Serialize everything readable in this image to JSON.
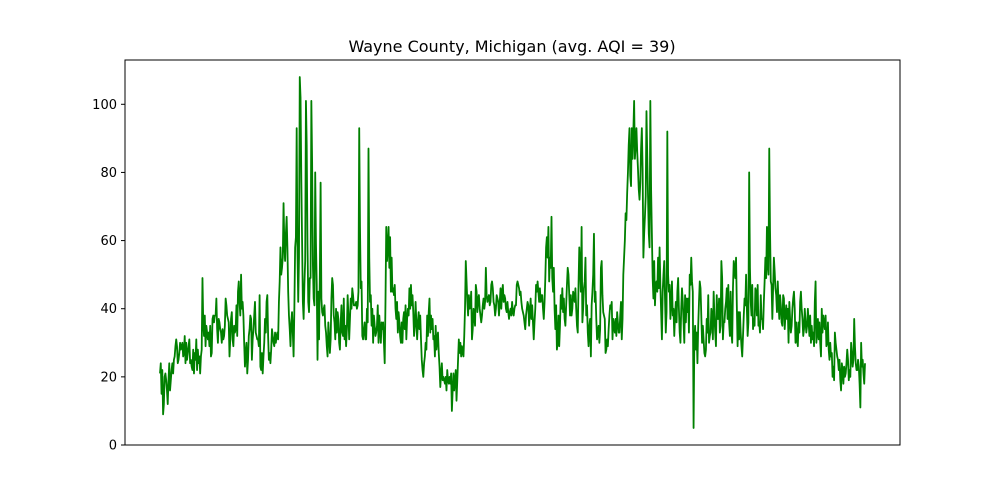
{
  "chart_data": {
    "type": "line",
    "title": "Wayne County, Michigan (avg. AQI = 39)",
    "xlabel": "",
    "ylabel": "",
    "x_tick_labels_shown": false,
    "ylim": [
      0,
      113
    ],
    "yticks": [
      0,
      20,
      40,
      60,
      80,
      100
    ],
    "grid": false,
    "line_color": "#008000",
    "series": [
      {
        "values": [
          21,
          24,
          15,
          22,
          9,
          12,
          20,
          21,
          19,
          16,
          12,
          19,
          24,
          16,
          19,
          22,
          24,
          21,
          25,
          26,
          29,
          31,
          29,
          24,
          25,
          27,
          30,
          28,
          29,
          30,
          26,
          27,
          32,
          24,
          30,
          25,
          27,
          29,
          31,
          24,
          25,
          23,
          22,
          28,
          21,
          27,
          25,
          31,
          22,
          28,
          24,
          26,
          21,
          26,
          28,
          49,
          36,
          32,
          38,
          29,
          35,
          33,
          31,
          33,
          29,
          35,
          26,
          27,
          37,
          38,
          36,
          38,
          38,
          43,
          34,
          30,
          37,
          36,
          34,
          33,
          30,
          34,
          31,
          32,
          35,
          43,
          41,
          38,
          37,
          36,
          26,
          31,
          37,
          39,
          31,
          29,
          35,
          33,
          34,
          41,
          32,
          45,
          48,
          42,
          38,
          50,
          40,
          42,
          38,
          30,
          23,
          27,
          30,
          21,
          25,
          32,
          34,
          38,
          37,
          25,
          31,
          34,
          38,
          42,
          33,
          32,
          31,
          31,
          29,
          44,
          23,
          22,
          27,
          21,
          26,
          30,
          37,
          33,
          42,
          44,
          32,
          25,
          27,
          24,
          28,
          34,
          32,
          30,
          29,
          33,
          30,
          32,
          33,
          31,
          42,
          48,
          58,
          50,
          52,
          55,
          71,
          59,
          54,
          62,
          67,
          58,
          45,
          38,
          34,
          29,
          36,
          39,
          33,
          26,
          40,
          58,
          61,
          93,
          57,
          42,
          55,
          108,
          102,
          78,
          60,
          42,
          37,
          47,
          54,
          101,
          88,
          59,
          42,
          39,
          49,
          49,
          101,
          83,
          53,
          43,
          41,
          80,
          59,
          47,
          25,
          45,
          31,
          50,
          77,
          43,
          39,
          38,
          40,
          41,
          35,
          33,
          29,
          26,
          36,
          32,
          27,
          31,
          43,
          49,
          47,
          38,
          36,
          31,
          40,
          33,
          39,
          37,
          30,
          28,
          36,
          41,
          33,
          32,
          43,
          31,
          35,
          29,
          34,
          44,
          38,
          31,
          37,
          43,
          40,
          46,
          44,
          41,
          41,
          41,
          42,
          40,
          41,
          45,
          93,
          64,
          46,
          48,
          32,
          31,
          34,
          36,
          31,
          31,
          40,
          36,
          87,
          55,
          42,
          44,
          35,
          40,
          30,
          38,
          35,
          32,
          33,
          35,
          41,
          30,
          38,
          34,
          30,
          36,
          34,
          36,
          30,
          24,
          42,
          64,
          54,
          58,
          64,
          52,
          61,
          45,
          55,
          45,
          46,
          44,
          47,
          40,
          37,
          42,
          33,
          39,
          36,
          32,
          30,
          36,
          30,
          37,
          39,
          34,
          41,
          31,
          37,
          40,
          38,
          46,
          40,
          47,
          41,
          44,
          39,
          32,
          35,
          42,
          36,
          31,
          36,
          39,
          34,
          38,
          31,
          25,
          22,
          20,
          24,
          26,
          30,
          28,
          38,
          32,
          39,
          43,
          33,
          38,
          34,
          37,
          31,
          32,
          26,
          35,
          28,
          31,
          33,
          27,
          23,
          17,
          21,
          24,
          19,
          20,
          19,
          18,
          20,
          16,
          22,
          19,
          18,
          20,
          18,
          21,
          10,
          16,
          21,
          16,
          19,
          22,
          13,
          19,
          25,
          31,
          27,
          30,
          26,
          29,
          27,
          26,
          32,
          40,
          54,
          48,
          42,
          38,
          44,
          40,
          41,
          45,
          31,
          34,
          40,
          38,
          35,
          47,
          45,
          39,
          43,
          44,
          40,
          38,
          36,
          38,
          41,
          43,
          40,
          42,
          52,
          44,
          42,
          43,
          44,
          41,
          42,
          47,
          48,
          46,
          42,
          41,
          38,
          40,
          44,
          43,
          42,
          38,
          42,
          46,
          40,
          45,
          47,
          42,
          44,
          43,
          40,
          39,
          42,
          39,
          37,
          39,
          40,
          38,
          42,
          39,
          38,
          40,
          41,
          41,
          47,
          48,
          47,
          46,
          44,
          45,
          42,
          40,
          39,
          38,
          36,
          34,
          38,
          40,
          42,
          41,
          35,
          39,
          43,
          37,
          41,
          36,
          31,
          36,
          40,
          47,
          45,
          48,
          45,
          42,
          46,
          42,
          44,
          44,
          40,
          37,
          42,
          49,
          58,
          61,
          55,
          64,
          48,
          55,
          52,
          67,
          49,
          45,
          52,
          40,
          34,
          41,
          28,
          30,
          38,
          29,
          35,
          44,
          40,
          46,
          39,
          43,
          37,
          35,
          41,
          47,
          52,
          50,
          44,
          38,
          44,
          38,
          40,
          45,
          44,
          42,
          46,
          40,
          35,
          33,
          47,
          58,
          52,
          45,
          64,
          36,
          40,
          46,
          48,
          55,
          38,
          41,
          33,
          29,
          35,
          37,
          26,
          41,
          45,
          50,
          62,
          42,
          45,
          37,
          31,
          33,
          35,
          30,
          34,
          52,
          54,
          44,
          39,
          38,
          37,
          27,
          28,
          31,
          29,
          34,
          38,
          41,
          40,
          42,
          31,
          37,
          35,
          33,
          37,
          32,
          39,
          36,
          33,
          33,
          38,
          42,
          31,
          37,
          50,
          55,
          60,
          68,
          66,
          74,
          80,
          88,
          93,
          79,
          76,
          93,
          84,
          92,
          101,
          84,
          88,
          93,
          86,
          81,
          75,
          72,
          77,
          87,
          93,
          81,
          55,
          62,
          67,
          73,
          98,
          85,
          73,
          62,
          58,
          101,
          75,
          62,
          49,
          43,
          54,
          41,
          47,
          48,
          45,
          55,
          46,
          58,
          47,
          39,
          31,
          45,
          50,
          54,
          43,
          33,
          39,
          92,
          50,
          45,
          47,
          37,
          42,
          48,
          38,
          40,
          32,
          38,
          42,
          36,
          45,
          49,
          40,
          33,
          30,
          40,
          46,
          42,
          36,
          30,
          44,
          36,
          43,
          39,
          43,
          33,
          50,
          47,
          55,
          48,
          45,
          5,
          31,
          35,
          28,
          33,
          24,
          35,
          42,
          48,
          46,
          38,
          30,
          35,
          31,
          27,
          26,
          28,
          37,
          33,
          44,
          30,
          32,
          33,
          40,
          37,
          31,
          45,
          38,
          33,
          29,
          44,
          37,
          37,
          43,
          33,
          35,
          54,
          49,
          31,
          36,
          36,
          40,
          42,
          46,
          37,
          47,
          36,
          32,
          45,
          33,
          30,
          46,
          54,
          52,
          49,
          55,
          41,
          29,
          39,
          31,
          39,
          33,
          29,
          26,
          32,
          38,
          43,
          41,
          50,
          40,
          32,
          36,
          80,
          52,
          42,
          38,
          47,
          34,
          37,
          35,
          46,
          45,
          38,
          47,
          35,
          36,
          33,
          44,
          37,
          37,
          34,
          42,
          48,
          55,
          49,
          64,
          53,
          50,
          87,
          63,
          48,
          47,
          37,
          46,
          55,
          51,
          46,
          44,
          39,
          48,
          42,
          37,
          44,
          41,
          36,
          35,
          44,
          43,
          34,
          38,
          41,
          37,
          40,
          30,
          42,
          37,
          33,
          35,
          40,
          43,
          45,
          40,
          30,
          36,
          31,
          29,
          36,
          33,
          42,
          45,
          40,
          37,
          32,
          34,
          40,
          36,
          33,
          35,
          40,
          36,
          32,
          38,
          30,
          35,
          31,
          33,
          29,
          42,
          48,
          30,
          33,
          37,
          31,
          36,
          30,
          26,
          40,
          33,
          38,
          36,
          34,
          38,
          29,
          30,
          36,
          28,
          25,
          30,
          26,
          27,
          20,
          23,
          19,
          33,
          30,
          28,
          26,
          25,
          22,
          25,
          19,
          16,
          24,
          22,
          18,
          23,
          20,
          21,
          24,
          28,
          25,
          19,
          22,
          20,
          30,
          27,
          23,
          25,
          37,
          29,
          24,
          22,
          22,
          25,
          23,
          18,
          11,
          30,
          23,
          25,
          21,
          18,
          24
        ]
      }
    ]
  }
}
